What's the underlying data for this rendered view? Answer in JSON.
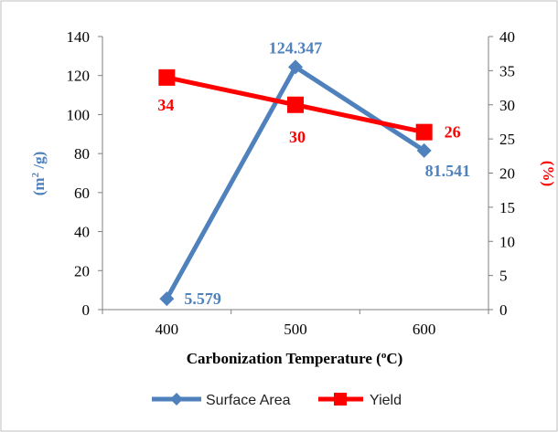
{
  "chart_data": {
    "type": "line",
    "categories": [
      "400",
      "500",
      "600"
    ],
    "xlabel": "Carbonization Temperature (",
    "xlabel_sup": "o",
    "xlabel_end": "C)",
    "y_left": {
      "label_prefix": "(m",
      "label_sup": "2",
      "label_suffix": " /g)",
      "ylim": [
        0,
        140
      ],
      "ticks": [
        "0",
        "20",
        "40",
        "60",
        "80",
        "100",
        "120",
        "140"
      ]
    },
    "y_right": {
      "label": "(%)",
      "ylim": [
        0,
        40
      ],
      "ticks": [
        "0",
        "5",
        "10",
        "15",
        "20",
        "25",
        "30",
        "35",
        "40"
      ]
    },
    "grid": false,
    "legend_position": "bottom",
    "series": [
      {
        "name": "Surface Area",
        "axis": "left",
        "values": [
          5.579,
          124.347,
          81.541
        ],
        "labels": [
          "5.579",
          "124.347",
          "81.541"
        ],
        "color": "#4f81bd",
        "marker": "diamond"
      },
      {
        "name": "Yield",
        "axis": "right",
        "values": [
          34,
          30,
          26
        ],
        "labels": [
          "34",
          "30",
          "26"
        ],
        "color": "#ff0000",
        "marker": "square"
      }
    ]
  },
  "colors": {
    "left_axis_title": "#4f81bd",
    "right_axis_title": "#ff0000",
    "blue_labels": "#4f81bd",
    "red_labels": "#ff0000"
  }
}
